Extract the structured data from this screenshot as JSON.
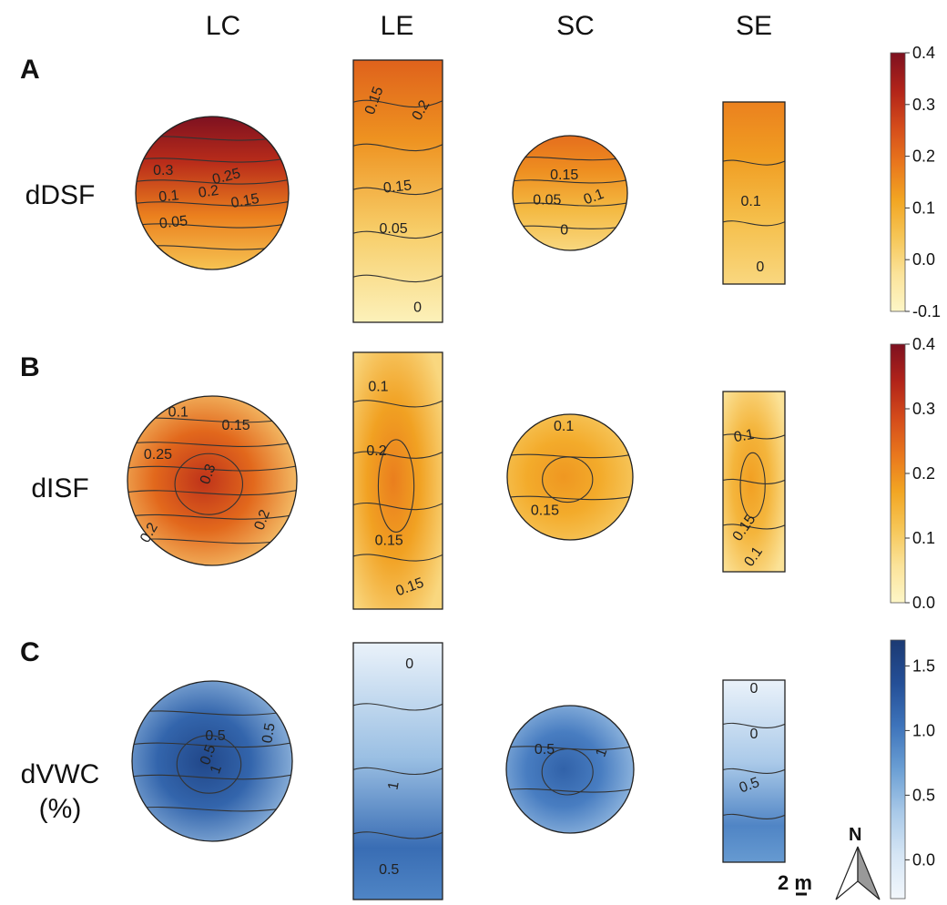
{
  "columns": [
    "LC",
    "LE",
    "SC",
    "SE"
  ],
  "panels": [
    {
      "letter": "A",
      "label": "dDSF",
      "label2": ""
    },
    {
      "letter": "B",
      "label": "dISF",
      "label2": ""
    },
    {
      "letter": "C",
      "label": "dVWC",
      "label2": "(%)"
    }
  ],
  "scale_bar": "2 m",
  "north_arrow": "N",
  "colors": {
    "warm": [
      "#fdf6c7",
      "#fbe39a",
      "#f6c657",
      "#f2a623",
      "#e9771d",
      "#d44b1b",
      "#b1231a",
      "#7e1120"
    ],
    "cool": [
      "#f2f7fc",
      "#d6e6f5",
      "#a9c9e8",
      "#6b9fd4",
      "#3e74bb",
      "#244f97",
      "#1c3a73"
    ]
  },
  "chart_data": [
    {
      "type": "heatmap",
      "panel": "A",
      "variable": "dDSF",
      "colorbar": {
        "ticks": [
          0.4,
          0.3,
          0.2,
          0.1,
          0.0,
          -0.1
        ],
        "range": [
          -0.1,
          0.4
        ],
        "scheme": "warm"
      },
      "plots": [
        {
          "site": "LC",
          "shape": "circle",
          "contour_labels": [
            "0.3",
            "0.25",
            "0.2",
            "0.15",
            "0.1",
            "0.05"
          ],
          "field": {
            "max": 0.4,
            "min": 0.05,
            "gradient": "north-high"
          }
        },
        {
          "site": "LE",
          "shape": "rectangle",
          "contour_labels": [
            "0.15",
            "0.2",
            "0.15",
            "0.05",
            "0"
          ],
          "field": {
            "max": 0.22,
            "min": -0.08,
            "gradient": "north-high"
          }
        },
        {
          "site": "SC",
          "shape": "circle",
          "contour_labels": [
            "0.15",
            "0.1",
            "0.05",
            "0"
          ],
          "field": {
            "max": 0.2,
            "min": 0.0,
            "gradient": "north-high"
          }
        },
        {
          "site": "SE",
          "shape": "rectangle",
          "contour_labels": [
            "0.1",
            "0"
          ],
          "field": {
            "max": 0.17,
            "min": 0.0,
            "gradient": "north-high"
          }
        }
      ]
    },
    {
      "type": "heatmap",
      "panel": "B",
      "variable": "dISF",
      "colorbar": {
        "ticks": [
          0.4,
          0.3,
          0.2,
          0.1,
          0.0
        ],
        "range": [
          0.0,
          0.4
        ],
        "scheme": "warm"
      },
      "plots": [
        {
          "site": "LC",
          "shape": "circle",
          "contour_labels": [
            "0.1",
            "0.15",
            "0.25",
            "0.3",
            "0.2",
            "0.2"
          ],
          "field": {
            "max": 0.32,
            "min": 0.08,
            "gradient": "center-high"
          }
        },
        {
          "site": "LE",
          "shape": "rectangle",
          "contour_labels": [
            "0.1",
            "0.2",
            "0.15",
            "0.15"
          ],
          "field": {
            "max": 0.22,
            "min": 0.08,
            "gradient": "center-high"
          }
        },
        {
          "site": "SC",
          "shape": "circle",
          "contour_labels": [
            "0.1",
            "0.15"
          ],
          "field": {
            "max": 0.19,
            "min": 0.1,
            "gradient": "center-high"
          }
        },
        {
          "site": "SE",
          "shape": "rectangle",
          "contour_labels": [
            "0.1",
            "0.15",
            "0.1"
          ],
          "field": {
            "max": 0.18,
            "min": 0.06,
            "gradient": "center-high"
          }
        }
      ]
    },
    {
      "type": "heatmap",
      "panel": "C",
      "variable": "dVWC (%)",
      "colorbar": {
        "ticks": [
          1.5,
          1.0,
          0.5,
          0.0
        ],
        "range": [
          -0.3,
          1.7
        ],
        "scheme": "cool"
      },
      "plots": [
        {
          "site": "LC",
          "shape": "circle",
          "contour_labels": [
            "0.5",
            "0.5",
            "0.5",
            "1"
          ],
          "field": {
            "max": 1.5,
            "min": 0.4,
            "gradient": "center-high"
          }
        },
        {
          "site": "LE",
          "shape": "rectangle",
          "contour_labels": [
            "0",
            "1",
            "0.5"
          ],
          "field": {
            "max": 1.1,
            "min": -0.2,
            "gradient": "south-high"
          }
        },
        {
          "site": "SC",
          "shape": "circle",
          "contour_labels": [
            "0.5",
            "1"
          ],
          "field": {
            "max": 1.2,
            "min": 0.4,
            "gradient": "center-high"
          }
        },
        {
          "site": "SE",
          "shape": "rectangle",
          "contour_labels": [
            "0",
            "0",
            "0.5"
          ],
          "field": {
            "max": 0.9,
            "min": -0.2,
            "gradient": "south-high"
          }
        }
      ]
    }
  ]
}
